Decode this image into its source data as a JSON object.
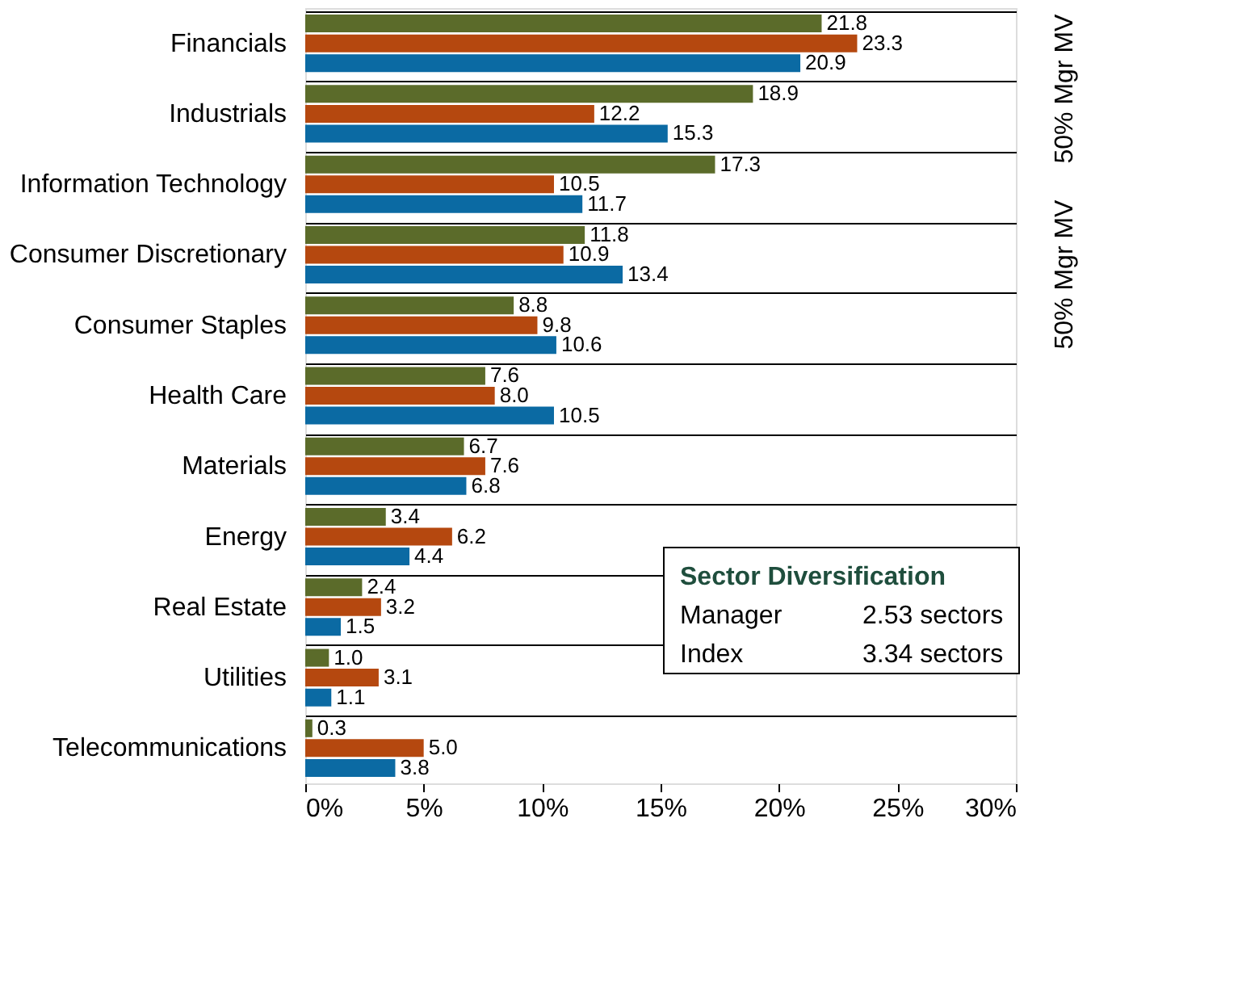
{
  "chart_data": {
    "type": "bar",
    "orientation": "horizontal",
    "categories": [
      "Financials",
      "Industrials",
      "Information Technology",
      "Consumer Discretionary",
      "Consumer Staples",
      "Health Care",
      "Materials",
      "Energy",
      "Real Estate",
      "Utilities",
      "Telecommunications"
    ],
    "series": [
      {
        "color": "#5b6b2a",
        "values": [
          21.8,
          18.9,
          17.3,
          11.8,
          8.8,
          7.6,
          6.7,
          3.4,
          2.4,
          1.0,
          0.3
        ],
        "value_labels": [
          "21.8",
          "18.9",
          "17.3",
          "11.8",
          "8.8",
          "7.6",
          "6.7",
          "3.4",
          "2.4",
          "1.0",
          "0.3"
        ]
      },
      {
        "color": "#b5480f",
        "values": [
          23.3,
          12.2,
          10.5,
          10.9,
          9.8,
          8.0,
          7.6,
          6.2,
          3.2,
          3.1,
          5.0
        ],
        "value_labels": [
          "23.3",
          "12.2",
          "10.5",
          "10.9",
          "9.8",
          "8.0",
          "7.6",
          "6.2",
          "3.2",
          "3.1",
          "5.0"
        ]
      },
      {
        "color": "#0b6aa3",
        "values": [
          20.9,
          15.3,
          11.7,
          13.4,
          10.6,
          10.5,
          6.8,
          4.4,
          1.5,
          1.1,
          3.8
        ],
        "value_labels": [
          "20.9",
          "15.3",
          "11.7",
          "13.4",
          "10.6",
          "10.5",
          "6.8",
          "4.4",
          "1.5",
          "1.1",
          "3.8"
        ]
      }
    ],
    "xlim": [
      0,
      30
    ],
    "xticks": [
      {
        "value": 0,
        "label": "0%"
      },
      {
        "value": 5,
        "label": "5%"
      },
      {
        "value": 10,
        "label": "10%"
      },
      {
        "value": 15,
        "label": "15%"
      },
      {
        "value": 20,
        "label": "20%"
      },
      {
        "value": 25,
        "label": "25%"
      },
      {
        "value": 30,
        "label": "30%"
      }
    ],
    "grid": "y",
    "annotations": [
      "50% Mgr MV",
      "50% Mgr MV",
      "Sector Diversification",
      "Manager",
      "2.53 sectors",
      "Index",
      "3.34 sectors"
    ]
  }
}
